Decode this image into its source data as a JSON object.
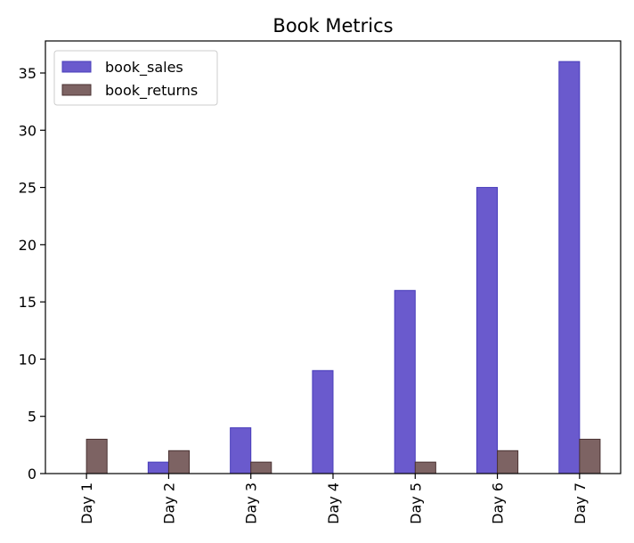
{
  "chart_data": {
    "type": "bar",
    "title": "Book Metrics",
    "xlabel": "",
    "ylabel": "",
    "categories": [
      "Day 1",
      "Day 2",
      "Day 3",
      "Day 4",
      "Day 5",
      "Day 6",
      "Day 7"
    ],
    "series": [
      {
        "name": "book_sales",
        "values": [
          0,
          1,
          4,
          9,
          16,
          25,
          36
        ],
        "color": "#6a5acd",
        "edge": "#483dbb"
      },
      {
        "name": "book_returns",
        "values": [
          3,
          2,
          1,
          0,
          1,
          2,
          3
        ],
        "color": "#7d6363",
        "edge": "#4a3232"
      }
    ],
    "ylim": [
      0,
      37.8
    ],
    "yticks": [
      0,
      5,
      10,
      15,
      20,
      25,
      30,
      35
    ],
    "grid": false,
    "legend": "top-left",
    "x_tick_rotation": 90
  }
}
